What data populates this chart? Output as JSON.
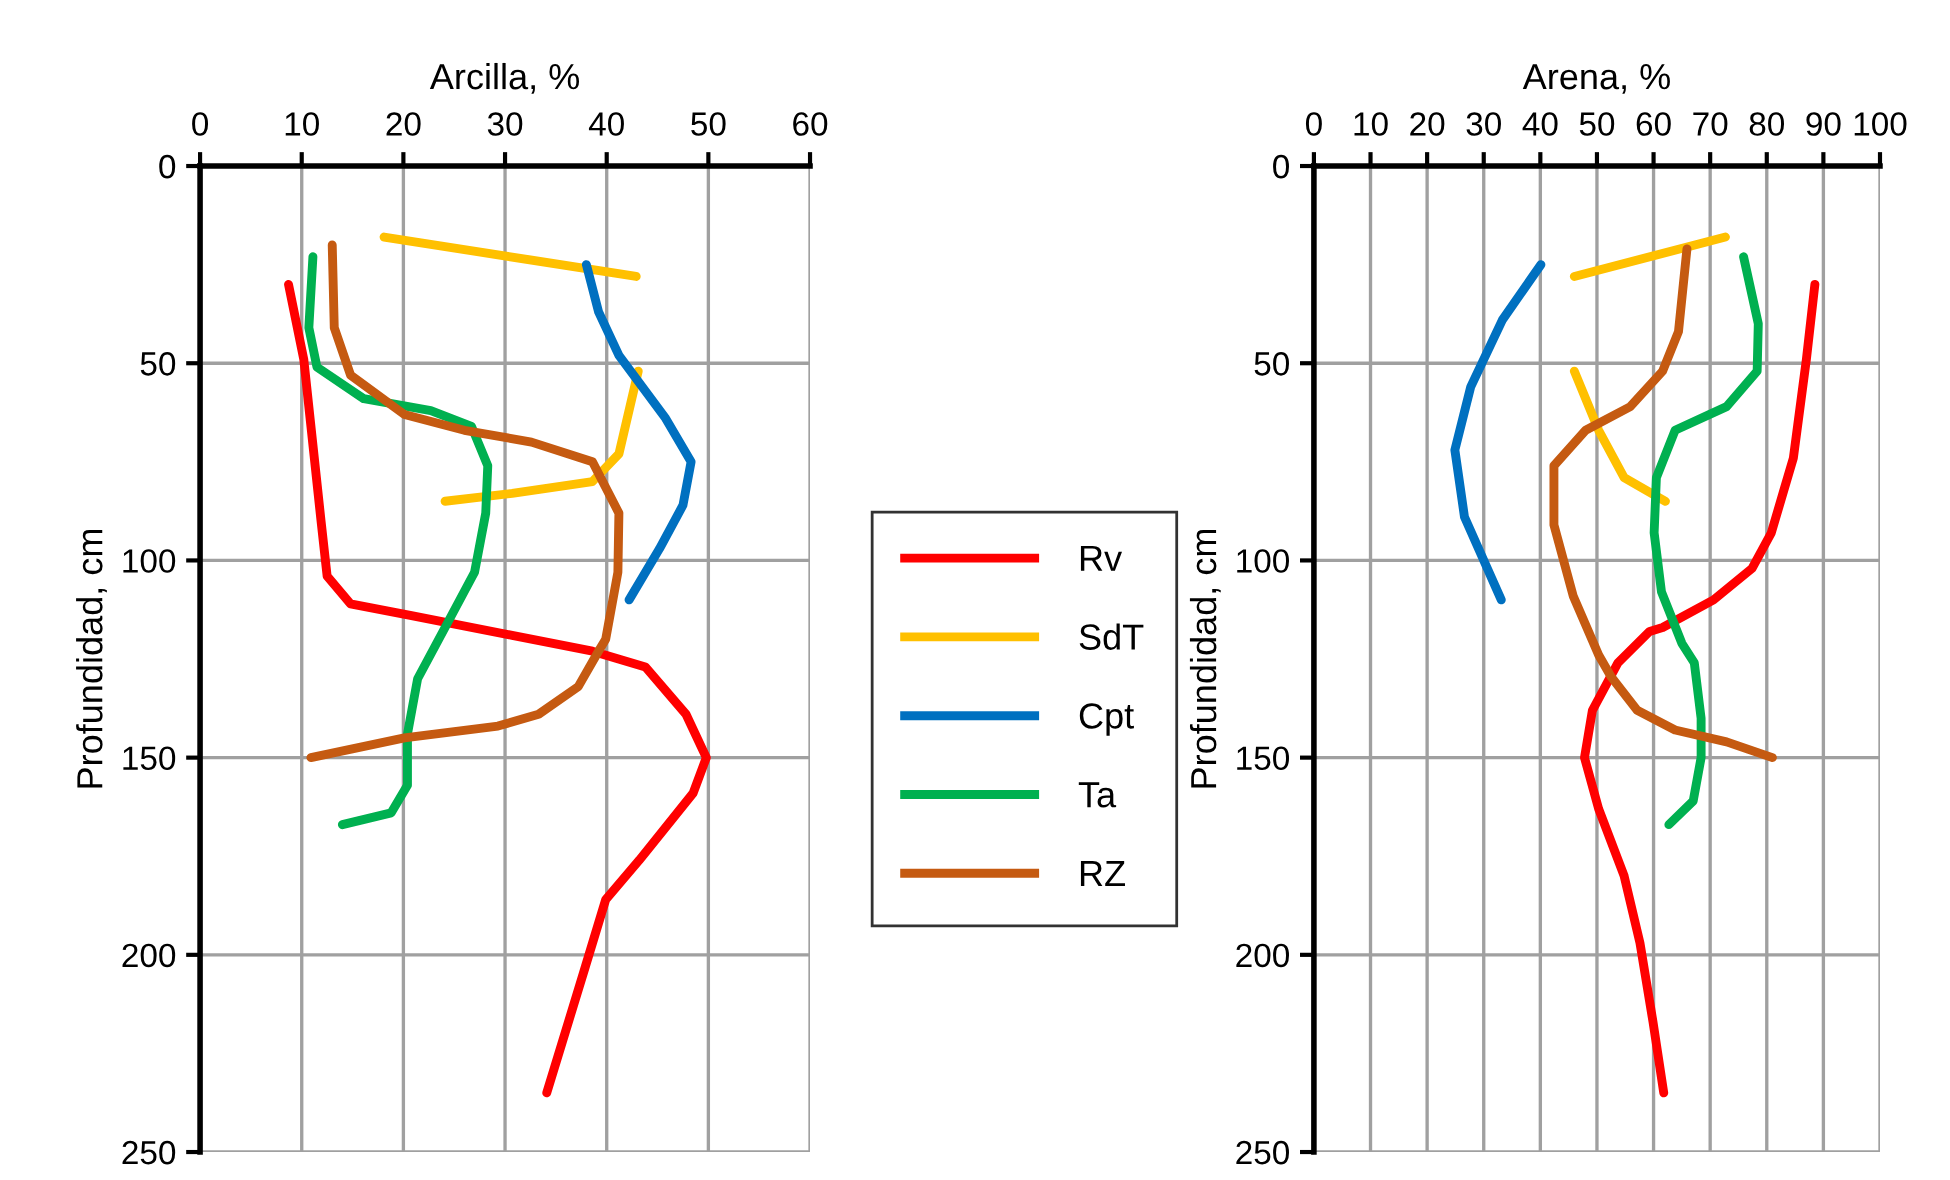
{
  "chart_data": [
    {
      "type": "line",
      "xlabel": "Arcilla, %",
      "ylabel": "Profundidad, cm",
      "xlim": [
        0,
        60
      ],
      "xticks": [
        0,
        10,
        20,
        30,
        40,
        50,
        60
      ],
      "ylim": [
        250,
        0
      ],
      "yticks": [
        0,
        50,
        100,
        150,
        200,
        250
      ],
      "grid": true,
      "legend": "right",
      "line_style": "solid",
      "marker": "none",
      "series": [
        {
          "name": "Rv",
          "color": "#ff0000",
          "x": [
            8.7,
            10.2,
            11.9,
            12.5,
            14.8,
            20.8,
            30.7,
            38.6,
            43.8,
            47.8,
            49.8,
            48.5,
            43.2,
            39.9,
            37.9,
            34.1
          ],
          "values": [
            30,
            49,
            90,
            104,
            111,
            114,
            119,
            123,
            127,
            139,
            150,
            159,
            176,
            186,
            203,
            235
          ]
        },
        {
          "name": "SdT",
          "color": "#ffc000",
          "x": [
            18.1,
            42.9,
            null,
            43.1,
            41.2,
            38.6,
            30.7,
            24.1
          ],
          "values": [
            18,
            28,
            null,
            52,
            73,
            80,
            83,
            85
          ]
        },
        {
          "name": "Cpt",
          "color": "#0070c0",
          "x": [
            38.0,
            39.2,
            41.2,
            45.8,
            48.3,
            47.5,
            45.2,
            42.2
          ],
          "values": [
            25,
            37,
            48,
            64,
            75,
            86,
            97,
            110
          ]
        },
        {
          "name": "Ta",
          "color": "#00b050",
          "x": [
            11.1,
            10.7,
            11.5,
            16.1,
            22.7,
            26.7,
            28.3,
            28.1,
            27.0,
            24.1,
            21.4,
            20.4,
            20.4,
            18.8,
            14.0
          ],
          "values": [
            23,
            41,
            51,
            59,
            62,
            66,
            76,
            88,
            103,
            117,
            130,
            144,
            157,
            164,
            167
          ]
        },
        {
          "name": "RZ",
          "color": "#c55a11",
          "x": [
            13.0,
            13.2,
            14.8,
            20.1,
            26.0,
            32.6,
            38.6,
            41.2,
            41.1,
            39.9,
            39.2,
            37.2,
            33.3,
            29.3,
            20.1,
            10.9
          ],
          "values": [
            20,
            41,
            53,
            63,
            67,
            70,
            75,
            88,
            103,
            120,
            123,
            132,
            139,
            142,
            145,
            150
          ]
        }
      ]
    },
    {
      "type": "line",
      "xlabel": "Arena, %",
      "ylabel": "Profundidad, cm",
      "xlim": [
        0,
        100
      ],
      "xticks": [
        0,
        10,
        20,
        30,
        40,
        50,
        60,
        70,
        80,
        90,
        100
      ],
      "ylim": [
        250,
        0
      ],
      "yticks": [
        0,
        50,
        100,
        150,
        200,
        250
      ],
      "grid": true,
      "line_style": "solid",
      "marker": "none",
      "series": [
        {
          "color": "#ff0000",
          "x": [
            88.5,
            87.0,
            84.7,
            80.8,
            77.4,
            70.6,
            61.6,
            59.3,
            53.7,
            49.2,
            47.8,
            50.3,
            54.8,
            57.6,
            59.9,
            61.8
          ],
          "values": [
            30,
            49,
            74,
            93,
            102,
            110,
            117,
            118,
            126,
            138,
            150,
            163,
            180,
            197,
            217,
            235
          ]
        },
        {
          "color": "#ffc000",
          "x": [
            46.0,
            72.7,
            null,
            46.0,
            50.3,
            54.8,
            62.1
          ],
          "values": [
            28,
            18,
            null,
            52,
            67,
            79,
            85
          ]
        },
        {
          "color": "#0070c0",
          "x": [
            40.1,
            33.3,
            27.7,
            24.9,
            26.6,
            33.1
          ],
          "values": [
            25,
            39,
            56,
            72,
            89,
            110
          ]
        },
        {
          "color": "#00b050",
          "x": [
            75.9,
            78.5,
            78.3,
            72.9,
            63.8,
            60.5,
            60.1,
            61.4,
            65.0,
            67.2,
            68.4,
            68.4,
            67.0,
            62.7
          ],
          "values": [
            23,
            40,
            52,
            61,
            67,
            79,
            93,
            108,
            121,
            126,
            140,
            150,
            161,
            167
          ]
        },
        {
          "color": "#c55a11",
          "x": [
            65.9,
            64.4,
            61.6,
            55.9,
            48.0,
            42.4,
            42.4,
            45.8,
            50.3,
            52.5,
            57.1,
            63.8,
            72.9,
            81.0
          ],
          "values": [
            21,
            42,
            52,
            61,
            67,
            76,
            91,
            109,
            124,
            129.5,
            138,
            143,
            146,
            150
          ]
        }
      ]
    }
  ]
}
